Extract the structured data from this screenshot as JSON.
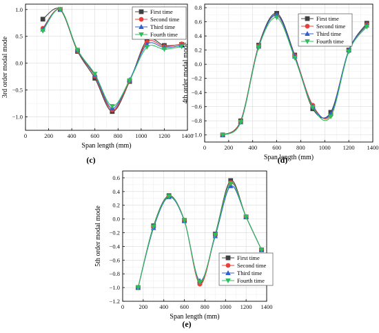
{
  "chart_data": [
    {
      "type": "line",
      "panel_label": "(c)",
      "xlabel": "Span length (mm)",
      "ylabel": "3rd order modal mode",
      "xlim": [
        0,
        1400
      ],
      "ylim": [
        -1.25,
        1.1
      ],
      "xticks": [
        0,
        200,
        400,
        600,
        800,
        1000,
        1200,
        1400
      ],
      "xtick_labels": [
        "0",
        "200",
        "400",
        "600",
        "800",
        "1000",
        "1200",
        "1400"
      ],
      "yticks": [
        -1.0,
        -0.5,
        0.0,
        0.5,
        1.0
      ],
      "ytick_labels": [
        "−1.0",
        "−0.5",
        "0.0",
        "0.5",
        "1.0"
      ],
      "grid": true,
      "legend_position": "top-right",
      "x": [
        150,
        300,
        450,
        600,
        750,
        900,
        1050,
        1200,
        1350
      ],
      "series": [
        {
          "name": "First time",
          "values": [
            0.82,
            1.0,
            0.22,
            -0.28,
            -0.9,
            -0.34,
            0.43,
            0.33,
            0.35
          ]
        },
        {
          "name": "Second time",
          "values": [
            0.65,
            1.0,
            0.23,
            -0.24,
            -0.87,
            -0.33,
            0.39,
            0.31,
            0.36
          ]
        },
        {
          "name": "Third time",
          "values": [
            0.63,
            1.0,
            0.24,
            -0.22,
            -0.84,
            -0.31,
            0.35,
            0.29,
            0.33
          ]
        },
        {
          "name": "Fourth time",
          "values": [
            0.6,
            1.0,
            0.25,
            -0.2,
            -0.8,
            -0.32,
            0.3,
            0.26,
            0.31
          ]
        }
      ]
    },
    {
      "type": "line",
      "panel_label": "(d)",
      "xlabel": "Span length (mm)",
      "ylabel": "4th order modal mode",
      "xlim": [
        0,
        1400
      ],
      "ylim": [
        -1.1,
        0.85
      ],
      "xticks": [
        0,
        200,
        400,
        600,
        800,
        1000,
        1200,
        1400
      ],
      "xtick_labels": [
        "0",
        "200",
        "400",
        "600",
        "800",
        "1000",
        "1200",
        "1400"
      ],
      "yticks": [
        -1.0,
        -0.8,
        -0.6,
        -0.4,
        -0.2,
        0.0,
        0.2,
        0.4,
        0.6,
        0.8
      ],
      "ytick_labels": [
        "−1.0",
        "−0.8",
        "−0.6",
        "−0.4",
        "−0.2",
        "0.0",
        "0.2",
        "0.4",
        "0.6",
        "0.8"
      ],
      "grid": true,
      "legend_position": "top-right",
      "x": [
        150,
        300,
        450,
        600,
        750,
        900,
        1050,
        1200,
        1350
      ],
      "series": [
        {
          "name": "First time",
          "values": [
            -1.0,
            -0.8,
            0.27,
            0.72,
            0.13,
            -0.63,
            -0.68,
            0.2,
            0.58
          ]
        },
        {
          "name": "Second time",
          "values": [
            -1.0,
            -0.81,
            0.26,
            0.69,
            0.12,
            -0.58,
            -0.72,
            0.19,
            0.56
          ]
        },
        {
          "name": "Third time",
          "values": [
            -1.0,
            -0.82,
            0.25,
            0.7,
            0.11,
            -0.6,
            -0.7,
            0.2,
            0.55
          ]
        },
        {
          "name": "Fourth time",
          "values": [
            -1.0,
            -0.82,
            0.24,
            0.66,
            0.09,
            -0.61,
            -0.74,
            0.18,
            0.53
          ]
        }
      ]
    },
    {
      "type": "line",
      "panel_label": "(e)",
      "xlabel": "Span length (mm)",
      "ylabel": "5th order modal mode",
      "xlim": [
        0,
        1400
      ],
      "ylim": [
        -1.2,
        0.7
      ],
      "xticks": [
        0,
        200,
        400,
        600,
        800,
        1000,
        1200,
        1400
      ],
      "xtick_labels": [
        "0",
        "200",
        "400",
        "600",
        "800",
        "1000",
        "1200",
        "1400"
      ],
      "yticks": [
        -1.2,
        -1.0,
        -0.8,
        -0.6,
        -0.4,
        -0.2,
        0.0,
        0.2,
        0.4,
        0.6
      ],
      "ytick_labels": [
        "−1.2",
        "−1.0",
        "−0.8",
        "−0.6",
        "−0.4",
        "−0.2",
        "0.0",
        "0.2",
        "0.4",
        "0.6"
      ],
      "grid": true,
      "legend_position": "bottom-right",
      "x": [
        150,
        300,
        450,
        600,
        750,
        900,
        1050,
        1200,
        1350
      ],
      "series": [
        {
          "name": "First time",
          "values": [
            -1.0,
            -0.1,
            0.34,
            -0.02,
            -0.93,
            -0.22,
            0.56,
            0.03,
            -0.45
          ]
        },
        {
          "name": "Second time",
          "values": [
            -1.0,
            -0.12,
            0.33,
            -0.02,
            -0.95,
            -0.24,
            0.53,
            0.03,
            -0.45
          ]
        },
        {
          "name": "Third time",
          "values": [
            -1.0,
            -0.13,
            0.32,
            -0.03,
            -0.9,
            -0.25,
            0.48,
            0.03,
            -0.45
          ]
        },
        {
          "name": "Fourth time",
          "values": [
            -1.0,
            -0.11,
            0.33,
            -0.02,
            -0.92,
            -0.23,
            0.52,
            0.03,
            -0.45
          ]
        }
      ]
    }
  ],
  "series_style": {
    "colors": [
      "#404040",
      "#e8413a",
      "#2f5fd0",
      "#2ebf5a"
    ],
    "markers": [
      "square",
      "circle",
      "triangle-up",
      "triangle-down"
    ]
  }
}
